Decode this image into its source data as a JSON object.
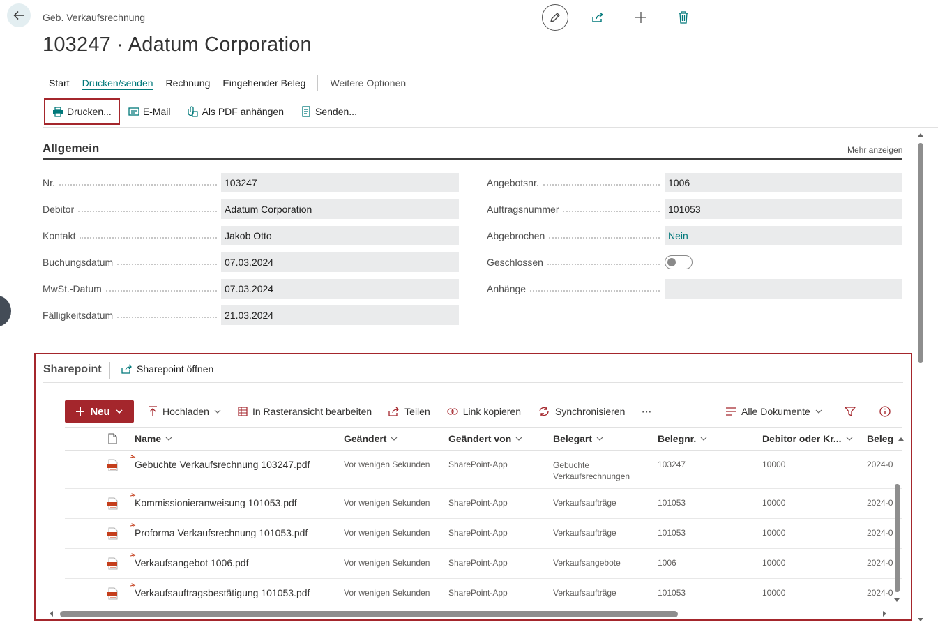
{
  "header": {
    "breadcrumb": "Geb. Verkaufsrechnung",
    "title": "103247 · Adatum Corporation"
  },
  "icons": {
    "back": "arrow-left-icon",
    "edit": "pencil-icon",
    "share": "share-icon",
    "add": "plus-icon",
    "delete": "trash-icon"
  },
  "tabs": [
    {
      "label": "Start"
    },
    {
      "label": "Drucken/senden"
    },
    {
      "label": "Rechnung"
    },
    {
      "label": "Eingehender Beleg"
    },
    {
      "label": "Weitere Optionen"
    }
  ],
  "actions": {
    "print": "Drucken...",
    "email": "E-Mail",
    "attach_pdf": "Als PDF anhängen",
    "send": "Senden..."
  },
  "general": {
    "title": "Allgemein",
    "more": "Mehr anzeigen",
    "left": [
      {
        "label": "Nr.",
        "value": "103247"
      },
      {
        "label": "Debitor",
        "value": "Adatum Corporation"
      },
      {
        "label": "Kontakt",
        "value": "Jakob Otto"
      },
      {
        "label": "Buchungsdatum",
        "value": "07.03.2024"
      },
      {
        "label": "MwSt.-Datum",
        "value": "07.03.2024"
      },
      {
        "label": "Fälligkeitsdatum",
        "value": "21.03.2024"
      }
    ],
    "right": [
      {
        "label": "Angebotsnr.",
        "value": "1006"
      },
      {
        "label": "Auftragsnummer",
        "value": "101053"
      },
      {
        "label": "Abgebrochen",
        "value": "Nein"
      },
      {
        "label": "Geschlossen",
        "value": ""
      },
      {
        "label": "Anhänge",
        "value": "_"
      }
    ]
  },
  "sharepoint": {
    "title": "Sharepoint",
    "open": "Sharepoint öffnen",
    "commands": {
      "new": "Neu",
      "upload": "Hochladen",
      "grid_edit": "In Rasteransicht bearbeiten",
      "share": "Teilen",
      "copy_link": "Link kopieren",
      "sync": "Synchronisieren",
      "more": "···",
      "view": "Alle Dokumente"
    },
    "columns": {
      "name": "Name",
      "modified": "Geändert",
      "modified_by": "Geändert von",
      "doc_type": "Belegart",
      "doc_no": "Belegnr.",
      "customer": "Debitor oder Kr...",
      "date": "Beleg"
    },
    "rows": [
      {
        "name": "Gebuchte Verkaufsrechnung 103247.pdf",
        "modified": "Vor wenigen Sekunden",
        "modified_by": "SharePoint-App",
        "doc_type": "Gebuchte Verkaufsrechnungen",
        "doc_no": "103247",
        "customer": "10000",
        "date": "2024-0"
      },
      {
        "name": "Kommissionieranweisung 101053.pdf",
        "modified": "Vor wenigen Sekunden",
        "modified_by": "SharePoint-App",
        "doc_type": "Verkaufsaufträge",
        "doc_no": "101053",
        "customer": "10000",
        "date": "2024-0"
      },
      {
        "name": "Proforma Verkaufsrechnung 101053.pdf",
        "modified": "Vor wenigen Sekunden",
        "modified_by": "SharePoint-App",
        "doc_type": "Verkaufsaufträge",
        "doc_no": "101053",
        "customer": "10000",
        "date": "2024-0"
      },
      {
        "name": "Verkaufsangebot 1006.pdf",
        "modified": "Vor wenigen Sekunden",
        "modified_by": "SharePoint-App",
        "doc_type": "Verkaufsangebote",
        "doc_no": "1006",
        "customer": "10000",
        "date": "2024-0"
      },
      {
        "name": "Verkaufsauftragsbestätigung 101053.pdf",
        "modified": "Vor wenigen Sekunden",
        "modified_by": "SharePoint-App",
        "doc_type": "Verkaufsaufträge",
        "doc_no": "101053",
        "customer": "10000",
        "date": "2024-0"
      }
    ]
  }
}
